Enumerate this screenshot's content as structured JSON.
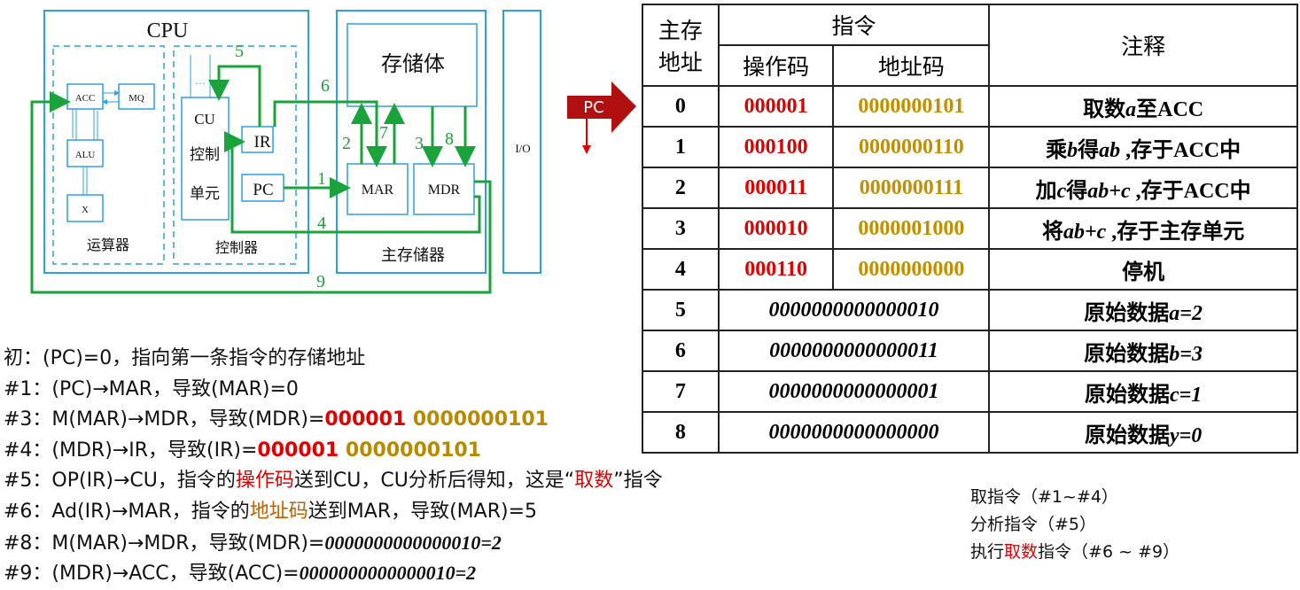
{
  "diagram": {
    "cpu": "CPU",
    "acc": "ACC",
    "mq": "MQ",
    "alu": "ALU",
    "x": "X",
    "alu_group": "运算器",
    "cu_line1": "CU",
    "cu_line2": "控制",
    "cu_line3": "单元",
    "ellipsis": "…",
    "ir": "IR",
    "pc": "PC",
    "control_group": "控制器",
    "storage": "存储体",
    "mar": "MAR",
    "mdr": "MDR",
    "main_memory": "主存储器",
    "io": "I/O",
    "steps": [
      "1",
      "2",
      "3",
      "4",
      "5",
      "6",
      "7",
      "8",
      "9"
    ],
    "colors": {
      "box": "#2ea0db",
      "path": "#1aa33a"
    }
  },
  "pc_pointer": {
    "label": "PC",
    "color": "#b01010"
  },
  "table": {
    "headers": {
      "address_line1": "主存",
      "address_line2": "地址",
      "instruction": "指令",
      "opcode": "操作码",
      "addr_code": "地址码",
      "note": "注释"
    },
    "instr_rows": [
      {
        "addr": "0",
        "op": "000001",
        "ad": "0000000101",
        "note_pre": "取数",
        "note_var": "a",
        "note_post": "至ACC"
      },
      {
        "addr": "1",
        "op": "000100",
        "ad": "0000000110",
        "note_pre": "乘",
        "note_var": "b",
        "note_mid": "得",
        "note_var2": "ab",
        "note_post": " ,存于ACC中"
      },
      {
        "addr": "2",
        "op": "000011",
        "ad": "0000000111",
        "note_pre": "加",
        "note_var": "c",
        "note_mid": "得",
        "note_var2": "ab+c",
        "note_post": "  ,存于ACC中"
      },
      {
        "addr": "3",
        "op": "000010",
        "ad": "0000001000",
        "note_pre": "将",
        "note_var": "ab+c",
        "note_post": " ,存于主存单元"
      },
      {
        "addr": "4",
        "op": "000110",
        "ad": "0000000000",
        "note_pre": "停机"
      }
    ],
    "data_rows": [
      {
        "addr": "5",
        "value": "0000000000000010",
        "note_pre": "原始数据",
        "note_var": "a=2"
      },
      {
        "addr": "6",
        "value": "0000000000000011",
        "note_pre": "原始数据",
        "note_var": "b=3"
      },
      {
        "addr": "7",
        "value": "0000000000000001",
        "note_pre": "原始数据",
        "note_var": "c=1"
      },
      {
        "addr": "8",
        "value": "0000000000000000",
        "note_pre": "原始数据",
        "note_var": "y=0"
      }
    ]
  },
  "steps": {
    "init": "初：(PC)=0，指向第一条指令的存储地址",
    "s1": "#1：(PC)→MAR，导致(MAR)=0",
    "s3_pre": "#3：M(MAR)→MDR，导致(MDR)=",
    "s3_op": "000001",
    "s3_ad": " 0000000101",
    "s4_pre": "#4：(MDR)→IR，导致(IR)=",
    "s4_op": "000001",
    "s4_ad": " 0000000101",
    "s5_a": "#5：OP(IR)→CU，指令的",
    "s5_b": "操作码",
    "s5_c": "送到CU，CU分析后得知，这是“",
    "s5_d": "取数",
    "s5_e": "”指令",
    "s6_a": "#6：Ad(IR)→MAR，指令的",
    "s6_b": "地址码",
    "s6_c": "送到MAR，导致(MAR)=5",
    "s8_pre": "#8：M(MAR)→MDR，导致(MDR)=",
    "s8_val": "0000000000000010=2",
    "s9_pre": "#9：(MDR)→ACC，导致(ACC)=",
    "s9_val": "0000000000000010=2"
  },
  "summary": {
    "fetch": "取指令（#1~#4）",
    "analyze": "分析指令（#5）",
    "exec_a": "执行",
    "exec_b": "取数",
    "exec_c": "指令（#6 ~ #9）"
  }
}
